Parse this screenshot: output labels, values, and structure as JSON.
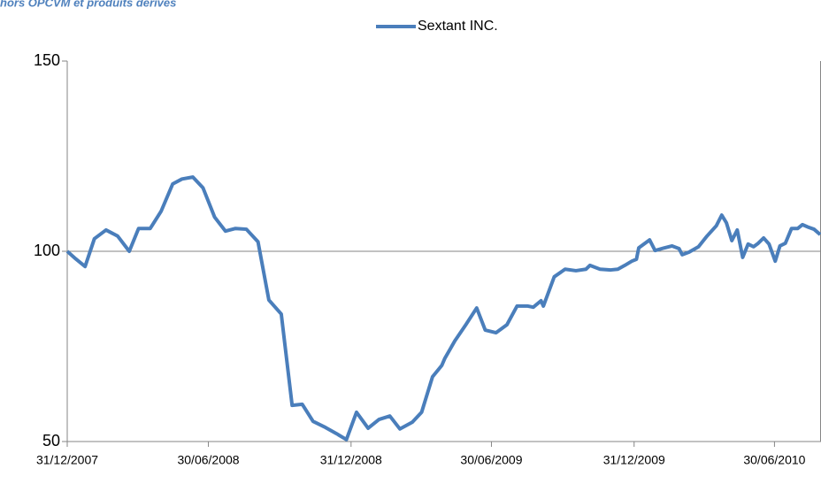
{
  "chart_data": {
    "type": "line",
    "title": "hors OPCVM et produits dérivés",
    "x": [
      "31/12/2007",
      "11/01/2008",
      "23/01/2008",
      "04/02/2008",
      "19/02/2008",
      "05/03/2008",
      "20/03/2008",
      "01/04/2008",
      "16/04/2008",
      "30/04/2008",
      "15/05/2008",
      "27/05/2008",
      "10/06/2008",
      "23/06/2008",
      "08/07/2008",
      "22/07/2008",
      "04/08/2008",
      "18/08/2008",
      "02/09/2008",
      "16/09/2008",
      "02/10/2008",
      "16/10/2008",
      "29/10/2008",
      "12/11/2008",
      "28/11/2008",
      "12/12/2008",
      "25/12/2008",
      "07/01/2009",
      "22/01/2009",
      "05/02/2009",
      "19/02/2009",
      "04/03/2009",
      "20/03/2009",
      "01/04/2009",
      "15/04/2009",
      "27/04/2009",
      "01/05/2009",
      "14/05/2009",
      "28/05/2009",
      "11/06/2009",
      "22/06/2009",
      "06/07/2009",
      "20/07/2009",
      "02/08/2009",
      "16/08/2009",
      "23/08/2009",
      "02/09/2009",
      "05/09/2009",
      "19/09/2009",
      "03/10/2009",
      "17/10/2009",
      "30/10/2009",
      "04/11/2009",
      "17/11/2009",
      "01/12/2009",
      "10/12/2009",
      "19/12/2009",
      "28/12/2009",
      "03/01/2010",
      "06/01/2010",
      "20/01/2010",
      "27/01/2010",
      "08/02/2010",
      "18/02/2010",
      "27/02/2010",
      "03/03/2010",
      "12/03/2010",
      "24/03/2010",
      "04/04/2010",
      "16/04/2010",
      "23/04/2010",
      "29/04/2010",
      "06/05/2010",
      "13/05/2010",
      "20/05/2010",
      "27/05/2010",
      "03/06/2010",
      "09/06/2010",
      "16/06/2010",
      "23/06/2010",
      "01/07/2010",
      "07/07/2010",
      "14/07/2010",
      "22/07/2010",
      "30/07/2010",
      "05/08/2010",
      "13/08/2010",
      "20/08/2010",
      "28/08/2010"
    ],
    "series": [
      {
        "name": "Sextant INC.",
        "color": "#4a7ebb",
        "values": [
          100,
          98,
          96,
          103.3,
          105.6,
          104,
          100,
          106,
          106,
          110.5,
          117.7,
          119,
          119.5,
          116.7,
          109,
          105.3,
          106,
          105.8,
          102.5,
          87.2,
          83.5,
          59.5,
          59.8,
          55.3,
          53.7,
          52.1,
          50.5,
          57.7,
          53.5,
          55.8,
          56.7,
          53.3,
          55.1,
          57.7,
          67,
          70,
          71.9,
          76.5,
          80.7,
          85.1,
          79.3,
          78.6,
          80.7,
          85.6,
          85.6,
          85.3,
          87,
          85.6,
          93.3,
          95.3,
          94.9,
          95.3,
          96.3,
          95.3,
          95.1,
          95.3,
          96.3,
          97.4,
          97.9,
          100.9,
          103,
          100.2,
          100.9,
          101.4,
          100.7,
          99.1,
          99.8,
          101.2,
          104,
          106.7,
          109.5,
          107.5,
          102.8,
          105.6,
          98.4,
          101.9,
          101.2,
          102.1,
          103.5,
          101.9,
          97.4,
          101.4,
          102.1,
          106,
          106,
          107,
          106.3,
          105.8,
          104.4
        ]
      }
    ],
    "xlim": [
      "31/12/2007",
      "29/08/2010"
    ],
    "xticks": [
      "31/12/2007",
      "30/06/2008",
      "31/12/2008",
      "30/06/2009",
      "31/12/2009",
      "30/06/2010"
    ],
    "ylim": [
      50,
      150
    ],
    "yticks": [
      50,
      100,
      150
    ],
    "grid": true,
    "legend": "top"
  }
}
